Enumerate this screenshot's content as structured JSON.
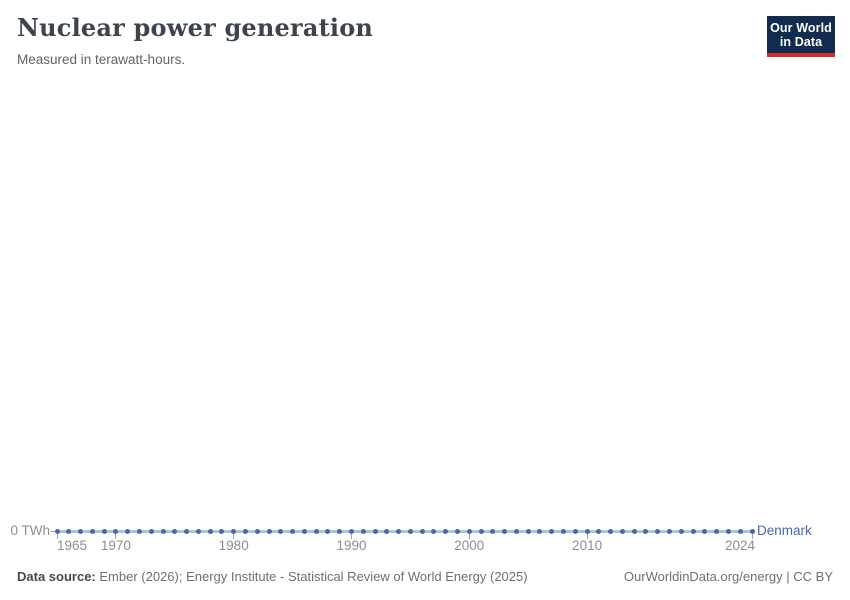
{
  "header": {
    "title": "Nuclear power generation",
    "subtitle": "Measured in terawatt-hours.",
    "logo": {
      "line1": "Our World",
      "line2": "in Data"
    }
  },
  "chart_data": {
    "type": "line",
    "title": "Nuclear power generation",
    "unit": "terawatt-hours",
    "grid": false,
    "legend_position": "end-of-line-label",
    "x_range": [
      1965,
      2024
    ],
    "ylim": [
      0,
      1
    ],
    "y_ticks": [
      0
    ],
    "y_tick_label": "0 TWh",
    "x_ticks": [
      1965,
      1970,
      1980,
      1990,
      2000,
      2010,
      2024
    ],
    "x_tick_labels": [
      "1965",
      "1970",
      "1980",
      "1990",
      "2000",
      "2010",
      "2024"
    ],
    "series": [
      {
        "name": "Denmark",
        "x": [
          1965,
          1966,
          1967,
          1968,
          1969,
          1970,
          1971,
          1972,
          1973,
          1974,
          1975,
          1976,
          1977,
          1978,
          1979,
          1980,
          1981,
          1982,
          1983,
          1984,
          1985,
          1986,
          1987,
          1988,
          1989,
          1990,
          1991,
          1992,
          1993,
          1994,
          1995,
          1996,
          1997,
          1998,
          1999,
          2000,
          2001,
          2002,
          2003,
          2004,
          2005,
          2006,
          2007,
          2008,
          2009,
          2010,
          2011,
          2012,
          2013,
          2014,
          2015,
          2016,
          2017,
          2018,
          2019,
          2020,
          2021,
          2022,
          2023,
          2024
        ],
        "values": [
          0,
          0,
          0,
          0,
          0,
          0,
          0,
          0,
          0,
          0,
          0,
          0,
          0,
          0,
          0,
          0,
          0,
          0,
          0,
          0,
          0,
          0,
          0,
          0,
          0,
          0,
          0,
          0,
          0,
          0,
          0,
          0,
          0,
          0,
          0,
          0,
          0,
          0,
          0,
          0,
          0,
          0,
          0,
          0,
          0,
          0,
          0,
          0,
          0,
          0,
          0,
          0,
          0,
          0,
          0,
          0,
          0,
          0,
          0,
          0
        ]
      }
    ],
    "colors": {
      "line": "#a9c3e3",
      "marker": "#4a69a6",
      "entity_label": "#4668b0",
      "tick": "#9aa4ac",
      "axis_text": "#898f95"
    }
  },
  "footer": {
    "source_label": "Data source:",
    "source_text": " Ember (2026); Energy Institute - Statistical Review of World Energy (2025)",
    "url_text": "OurWorldinData.org/energy",
    "separator": " | ",
    "license_text": "CC BY"
  }
}
